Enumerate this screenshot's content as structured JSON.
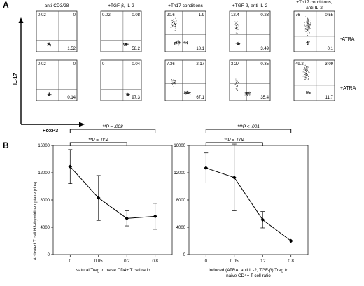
{
  "panel_a": {
    "letter": "A",
    "column_labels": [
      [
        "anti-CD3/28"
      ],
      [
        "+TGF-β, IL-2"
      ],
      [
        "+Th17 conditions"
      ],
      [
        "+TGF-β, anti-IL-2"
      ],
      [
        "+Th17 conditions,",
        "anti-IL-2"
      ]
    ],
    "row_labels": [
      "-ATRA",
      "+ATRA"
    ],
    "y_axis_label": "IL-17",
    "x_axis_label": "FoxP3",
    "quadrants": [
      [
        {
          "ul": "0.02",
          "ur": "0",
          "lr": "1.52"
        },
        {
          "ul": "0.02",
          "ur": "0.08",
          "lr": "58.2"
        },
        {
          "ul": "20.6",
          "ur": "1.9",
          "lr": "18.1"
        },
        {
          "ul": "12.4",
          "ur": "0.23",
          "lr": "3.49"
        },
        {
          "ul": "76",
          "ur": "0.55",
          "lr": "0.1"
        }
      ],
      [
        {
          "ul": "0.02",
          "ur": "0",
          "lr": "0.14"
        },
        {
          "ul": "0",
          "ur": "0.04",
          "lr": "97.3"
        },
        {
          "ul": "7.36",
          "ur": "2.17",
          "lr": "67.1"
        },
        {
          "ul": "3.27",
          "ur": "0.35",
          "lr": "35.4"
        },
        {
          "ul": "49.2",
          "ur": "3.09",
          "lr": "11.7"
        }
      ]
    ]
  },
  "panel_b": {
    "letter": "B",
    "ylabel": "Activated T cell H3-thymidine uptake (dps)",
    "charts": [
      {
        "type": "line",
        "xlabel": [
          "Natural Treg to naive CD4+ T cell ratio"
        ],
        "x_categories": [
          "0",
          "0.05",
          "0.2",
          "0.8"
        ],
        "y_ticks": [
          "0",
          "4000",
          "8000",
          "12000",
          "16000"
        ],
        "ylim": [
          0,
          16000
        ],
        "values": [
          12900,
          8300,
          5300,
          5600
        ],
        "err": [
          2500,
          3300,
          1100,
          1900
        ],
        "brackets": [
          {
            "from": 0,
            "to": 3,
            "label": "**P = .008"
          },
          {
            "from": 0,
            "to": 2,
            "label": "**P = .004"
          }
        ]
      },
      {
        "type": "line",
        "xlabel": [
          "Induced (ATRA, anti IL-2, TGF-β) Treg to",
          "naive CD4+ T cell ratio"
        ],
        "x_categories": [
          "0",
          "0.05",
          "0.2",
          "0.8"
        ],
        "y_ticks": [
          "0",
          "4000",
          "8000",
          "12000",
          "16000"
        ],
        "ylim": [
          0,
          16000
        ],
        "values": [
          12700,
          11300,
          5100,
          2000
        ],
        "err": [
          2200,
          4900,
          1200,
          0
        ],
        "brackets": [
          {
            "from": 0,
            "to": 3,
            "label": "***P < .001"
          },
          {
            "from": 0,
            "to": 2,
            "label": "**P = .004"
          }
        ]
      }
    ]
  },
  "chart_data": [
    {
      "type": "line",
      "xlabel": "Natural Treg to naive CD4+ T cell ratio",
      "ylabel": "Activated T cell H3-thymidine uptake (dps)",
      "categories": [
        "0",
        "0.05",
        "0.2",
        "0.8"
      ],
      "values": [
        12900,
        8300,
        5300,
        5600
      ],
      "ylim": [
        0,
        16000
      ]
    },
    {
      "type": "line",
      "xlabel": "Induced (ATRA, anti IL-2, TGF-β) Treg to naive CD4+ T cell ratio",
      "ylabel": "Activated T cell H3-thymidine uptake (dps)",
      "categories": [
        "0",
        "0.05",
        "0.2",
        "0.8"
      ],
      "values": [
        12700,
        11300,
        5100,
        2000
      ],
      "ylim": [
        0,
        16000
      ]
    }
  ]
}
